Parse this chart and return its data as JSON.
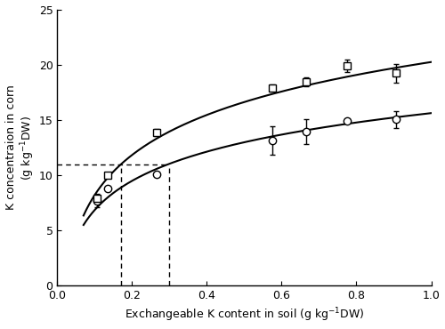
{
  "cecilia_means_x": [
    0.105,
    0.135,
    0.265,
    0.575,
    0.665,
    0.775,
    0.905
  ],
  "cecilia_means_y": [
    7.7,
    8.83,
    10.05,
    13.13,
    13.95,
    14.95,
    15.05
  ],
  "cecilia_means_sd": [
    0.58,
    0.12,
    0.13,
    1.3,
    1.16,
    0.15,
    0.75
  ],
  "yumechikara_means_x": [
    0.105,
    0.135,
    0.265,
    0.575,
    0.665,
    0.775,
    0.905
  ],
  "yumechikara_means_y": [
    7.9,
    10.0,
    13.88,
    17.9,
    18.43,
    19.9,
    19.23
  ],
  "yumechikara_means_sd": [
    0.25,
    0.15,
    0.32,
    0.32,
    0.39,
    0.55,
    0.85
  ],
  "cecilia_eq": {
    "a": 3.804,
    "b": 15.62
  },
  "yumechikara_eq": {
    "a": 5.221,
    "b": 20.24
  },
  "vline1": 0.17,
  "vline2": 0.3,
  "hline": 11.0,
  "xlim": [
    0.0,
    1.0
  ],
  "ylim": [
    0,
    25
  ],
  "xlabel": "Exchangeable K content in soil (g kg$^{-1}$DW)",
  "ylabel": "K concentraion in corn\n(g kg$^{-1}$DW)",
  "xticks": [
    0.0,
    0.2,
    0.4,
    0.6,
    0.8,
    1.0
  ],
  "yticks": [
    0,
    5,
    10,
    15,
    20,
    25
  ],
  "line_color": "black",
  "marker_size": 6,
  "capsize": 2
}
